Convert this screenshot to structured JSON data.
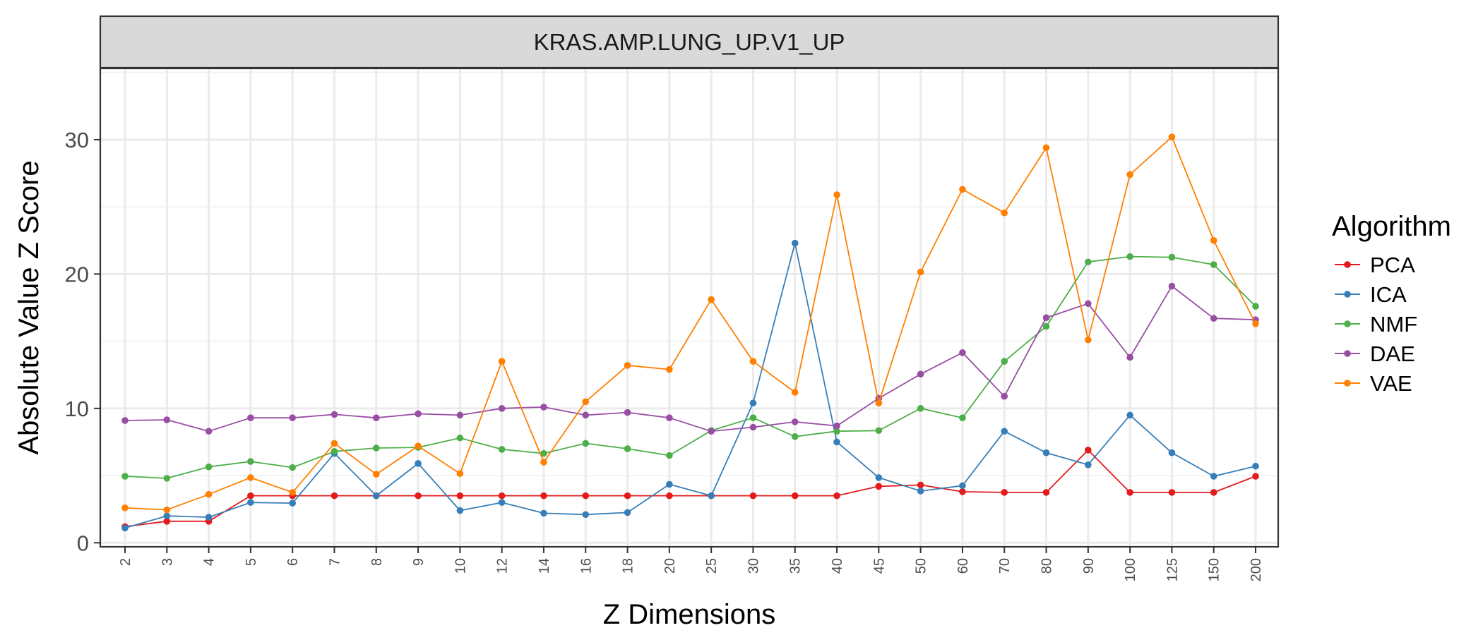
{
  "chart_data": {
    "type": "line",
    "facet_title": "KRAS.AMP.LUNG_UP.V1_UP",
    "xlabel": "Z Dimensions",
    "ylabel": "Absolute Value Z Score",
    "categories": [
      "2",
      "3",
      "4",
      "5",
      "6",
      "7",
      "8",
      "9",
      "10",
      "12",
      "14",
      "16",
      "18",
      "20",
      "25",
      "30",
      "35",
      "40",
      "45",
      "50",
      "60",
      "70",
      "80",
      "90",
      "100",
      "125",
      "150",
      "200"
    ],
    "ylim": [
      -0.3,
      35.3
    ],
    "yticks": [
      0,
      10,
      20,
      30
    ],
    "grid": true,
    "legend_title": "Algorithm",
    "legend_position": "right",
    "series": [
      {
        "name": "PCA",
        "color": "#E41A1C",
        "values": [
          1.2,
          1.6,
          1.6,
          3.5,
          3.5,
          3.5,
          3.5,
          3.5,
          3.5,
          3.5,
          3.5,
          3.5,
          3.5,
          3.5,
          3.5,
          3.5,
          3.5,
          3.5,
          4.2,
          4.3,
          3.8,
          3.75,
          3.75,
          6.9,
          3.75,
          3.75,
          3.75,
          4.95
        ]
      },
      {
        "name": "ICA",
        "color": "#377EB8",
        "values": [
          1.1,
          2.0,
          1.9,
          3.0,
          2.95,
          6.65,
          3.5,
          5.9,
          2.4,
          3.0,
          2.2,
          2.1,
          2.25,
          4.35,
          3.5,
          10.4,
          22.3,
          7.5,
          4.85,
          3.85,
          4.25,
          8.3,
          6.7,
          5.8,
          9.5,
          6.7,
          4.95,
          5.7
        ]
      },
      {
        "name": "NMF",
        "color": "#4DAF4A",
        "values": [
          4.95,
          4.8,
          5.65,
          6.05,
          5.6,
          6.8,
          7.05,
          7.1,
          7.8,
          6.95,
          6.65,
          7.4,
          7.0,
          6.5,
          8.35,
          9.3,
          7.9,
          8.3,
          8.35,
          10.0,
          9.3,
          13.5,
          16.1,
          20.9,
          21.3,
          21.25,
          20.7,
          17.6
        ]
      },
      {
        "name": "DAE",
        "color": "#984EA3",
        "values": [
          9.1,
          9.15,
          8.3,
          9.3,
          9.3,
          9.55,
          9.3,
          9.6,
          9.5,
          10.0,
          10.1,
          9.5,
          9.7,
          9.3,
          8.3,
          8.6,
          9.0,
          8.7,
          10.75,
          12.55,
          14.15,
          10.9,
          16.75,
          17.8,
          13.8,
          19.1,
          16.7,
          16.6
        ]
      },
      {
        "name": "VAE",
        "color": "#FF7F00",
        "values": [
          2.6,
          2.45,
          3.6,
          4.85,
          3.75,
          7.4,
          5.1,
          7.2,
          5.15,
          13.5,
          6.0,
          10.5,
          13.2,
          12.9,
          18.1,
          13.5,
          11.2,
          25.9,
          10.4,
          20.15,
          26.3,
          24.55,
          29.4,
          15.1,
          27.4,
          30.2,
          22.5,
          16.3
        ]
      }
    ]
  }
}
